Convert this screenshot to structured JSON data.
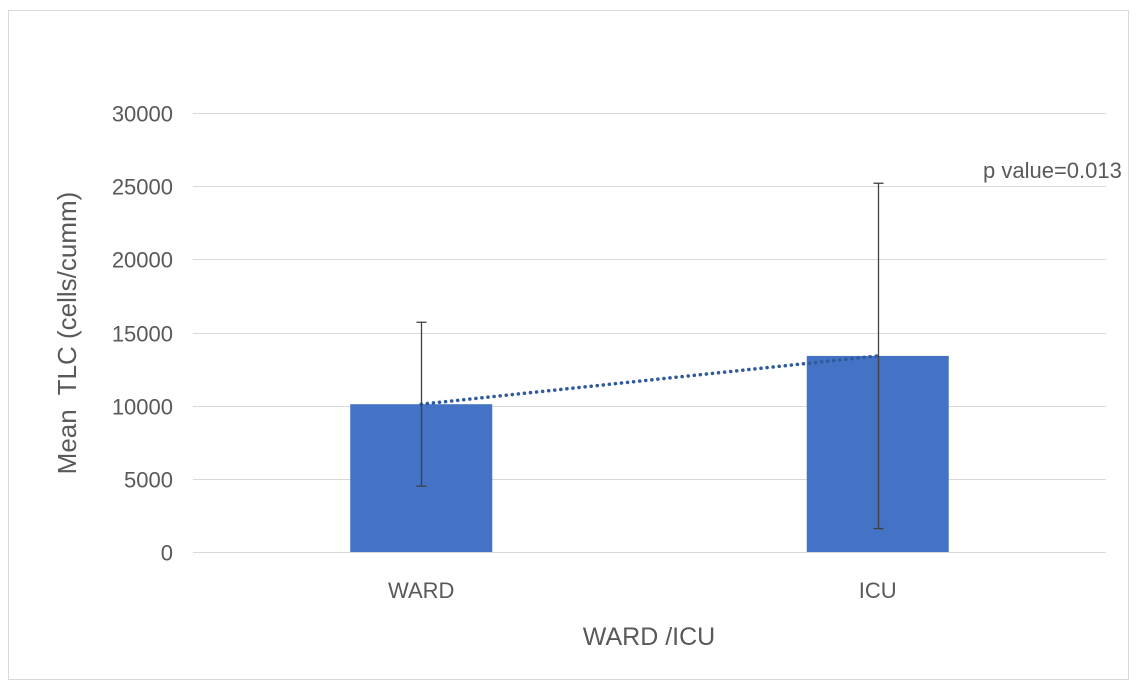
{
  "chart_data": {
    "type": "bar",
    "categories": [
      "WARD",
      "ICU"
    ],
    "values": [
      10100,
      13400
    ],
    "error": [
      5600,
      11800
    ],
    "xlabel": "WARD /ICU",
    "ylabel": "Mean  TLC (cells/cumm)",
    "ylim": [
      0,
      30000
    ],
    "yticks": [
      0,
      5000,
      10000,
      15000,
      20000,
      25000,
      30000
    ],
    "grid": true,
    "trendline": "linear",
    "annotation": "p value=0.013",
    "colors": {
      "bar": "#4472C4",
      "error_bar": "#404040",
      "trendline": "#2F5A9E",
      "grid": "#D9D9D9",
      "frame": "#D9D9D9"
    }
  }
}
